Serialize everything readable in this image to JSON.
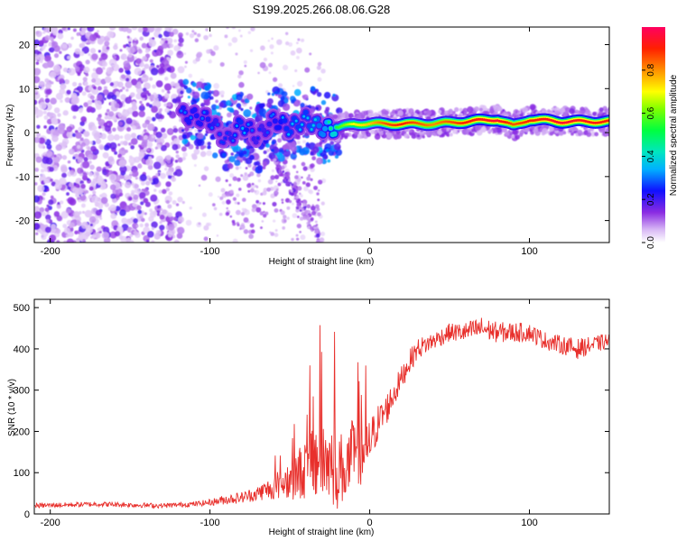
{
  "title": "S199.2025.266.08.06.G28",
  "chart_data": [
    {
      "type": "heatmap",
      "xlabel": "Height of straight line (km)",
      "ylabel": "Frequency (Hz)",
      "xlim": [
        -210,
        150
      ],
      "ylim": [
        -25,
        24
      ],
      "xticks": [
        -200,
        -100,
        0,
        100
      ],
      "yticks": [
        -20,
        -10,
        0,
        10,
        20
      ],
      "colorbar": {
        "label": "Normalized spectral amplitude",
        "range": [
          0,
          1
        ],
        "ticks": [
          "0.0",
          "0.2",
          "0.4",
          "0.6",
          "0.8"
        ]
      },
      "ridge": {
        "x": [
          -115,
          -100,
          -90,
          -80,
          -70,
          -60,
          -50,
          -40,
          -30,
          -20,
          -10,
          0,
          10,
          20,
          40,
          60,
          80,
          90,
          100,
          120,
          150
        ],
        "freq": [
          4,
          3,
          -2,
          2,
          -1,
          3,
          1,
          3,
          1,
          1,
          2,
          2,
          2,
          2,
          2,
          2.5,
          3,
          1.5,
          3,
          2.5,
          2.5
        ],
        "amplitude": [
          0.3,
          0.3,
          0.25,
          0.35,
          0.25,
          0.3,
          0.35,
          0.35,
          0.4,
          0.55,
          0.7,
          0.75,
          0.85,
          0.9,
          0.8,
          0.9,
          0.95,
          0.85,
          0.9,
          0.95,
          0.9
        ]
      }
    },
    {
      "type": "line",
      "xlabel": "Height of straight line (km)",
      "ylabel": "SNR (10 * v/v)",
      "xlim": [
        -210,
        150
      ],
      "ylim": [
        0,
        520
      ],
      "xticks": [
        -200,
        -100,
        0,
        100
      ],
      "yticks": [
        0,
        100,
        200,
        300,
        400,
        500
      ],
      "series": [
        {
          "name": "SNR",
          "color": "#e8302c",
          "x": [
            -210,
            -190,
            -170,
            -150,
            -130,
            -110,
            -100,
            -90,
            -80,
            -70,
            -60,
            -50,
            -40,
            -35,
            -30,
            -25,
            -20,
            -15,
            -10,
            -5,
            0,
            5,
            10,
            15,
            20,
            25,
            30,
            40,
            50,
            60,
            70,
            80,
            90,
            100,
            110,
            120,
            130,
            140,
            150
          ],
          "values": [
            20,
            22,
            24,
            22,
            20,
            24,
            28,
            35,
            40,
            50,
            65,
            85,
            110,
            130,
            140,
            120,
            110,
            110,
            150,
            140,
            170,
            220,
            250,
            290,
            330,
            370,
            400,
            420,
            440,
            440,
            450,
            440,
            440,
            440,
            420,
            410,
            400,
            410,
            420
          ],
          "noise": [
            6,
            6,
            6,
            6,
            6,
            6,
            8,
            12,
            14,
            18,
            30,
            50,
            75,
            100,
            120,
            110,
            100,
            80,
            90,
            70,
            60,
            45,
            40,
            35,
            30,
            28,
            25,
            22,
            22,
            25,
            28,
            25,
            25,
            22,
            22,
            22,
            25,
            20,
            20
          ]
        }
      ]
    }
  ]
}
